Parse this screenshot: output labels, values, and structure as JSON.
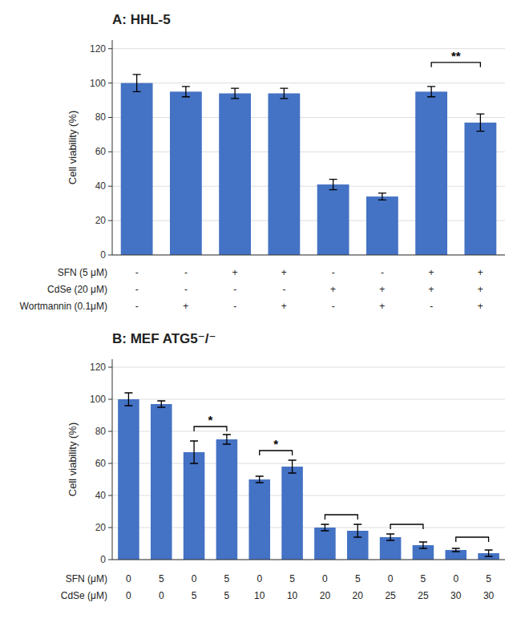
{
  "chart_data": [
    {
      "type": "bar",
      "title": "A: HHL-5",
      "values": [
        100,
        95,
        94,
        94,
        41,
        34,
        95,
        77
      ],
      "errors": [
        5,
        3,
        3,
        3,
        3,
        2,
        3,
        5
      ],
      "color": "#4472C4",
      "ylabel": "Cell viability (%)",
      "ylim": [
        0,
        125
      ],
      "yticks": [
        0,
        20,
        40,
        60,
        80,
        100,
        120
      ],
      "grid": true,
      "rows": [
        {
          "label": "SFN (5 μM)",
          "values": [
            "-",
            "-",
            "+",
            "+",
            "-",
            "-",
            "+",
            "+"
          ]
        },
        {
          "label": "CdSe (20 μM)",
          "values": [
            "-",
            "-",
            "-",
            "-",
            "+",
            "+",
            "+",
            "+"
          ]
        },
        {
          "label": "Wortmannin (0.1μM)",
          "values": [
            "-",
            "+",
            "-",
            "+",
            "-",
            "+",
            "-",
            "+"
          ]
        }
      ],
      "brackets": [
        {
          "from": 6,
          "to": 7,
          "y": 112,
          "label": "**"
        }
      ]
    },
    {
      "type": "bar",
      "title": "B: MEF ATG5⁻/⁻",
      "values": [
        100,
        97,
        67,
        75,
        50,
        58,
        20,
        18,
        14,
        9,
        6,
        4
      ],
      "errors": [
        4,
        2,
        7,
        3,
        2,
        4,
        2,
        4,
        2,
        2,
        1,
        2
      ],
      "color": "#4472C4",
      "ylabel": "Cell viability (%)",
      "ylim": [
        0,
        125
      ],
      "yticks": [
        0,
        20,
        40,
        60,
        80,
        100,
        120
      ],
      "grid": true,
      "rows": [
        {
          "label": "SFN (μM)",
          "values": [
            "0",
            "5",
            "0",
            "5",
            "0",
            "5",
            "0",
            "5",
            "0",
            "5",
            "0",
            "5"
          ]
        },
        {
          "label": "CdSe (μM)",
          "values": [
            "0",
            "0",
            "5",
            "5",
            "10",
            "10",
            "20",
            "20",
            "25",
            "25",
            "30",
            "30"
          ]
        }
      ],
      "brackets": [
        {
          "from": 2,
          "to": 3,
          "y": 83,
          "label": "*"
        },
        {
          "from": 4,
          "to": 5,
          "y": 68,
          "label": "*"
        },
        {
          "from": 6,
          "to": 7,
          "y": 28
        },
        {
          "from": 8,
          "to": 9,
          "y": 22
        },
        {
          "from": 10,
          "to": 11,
          "y": 14
        }
      ]
    }
  ]
}
